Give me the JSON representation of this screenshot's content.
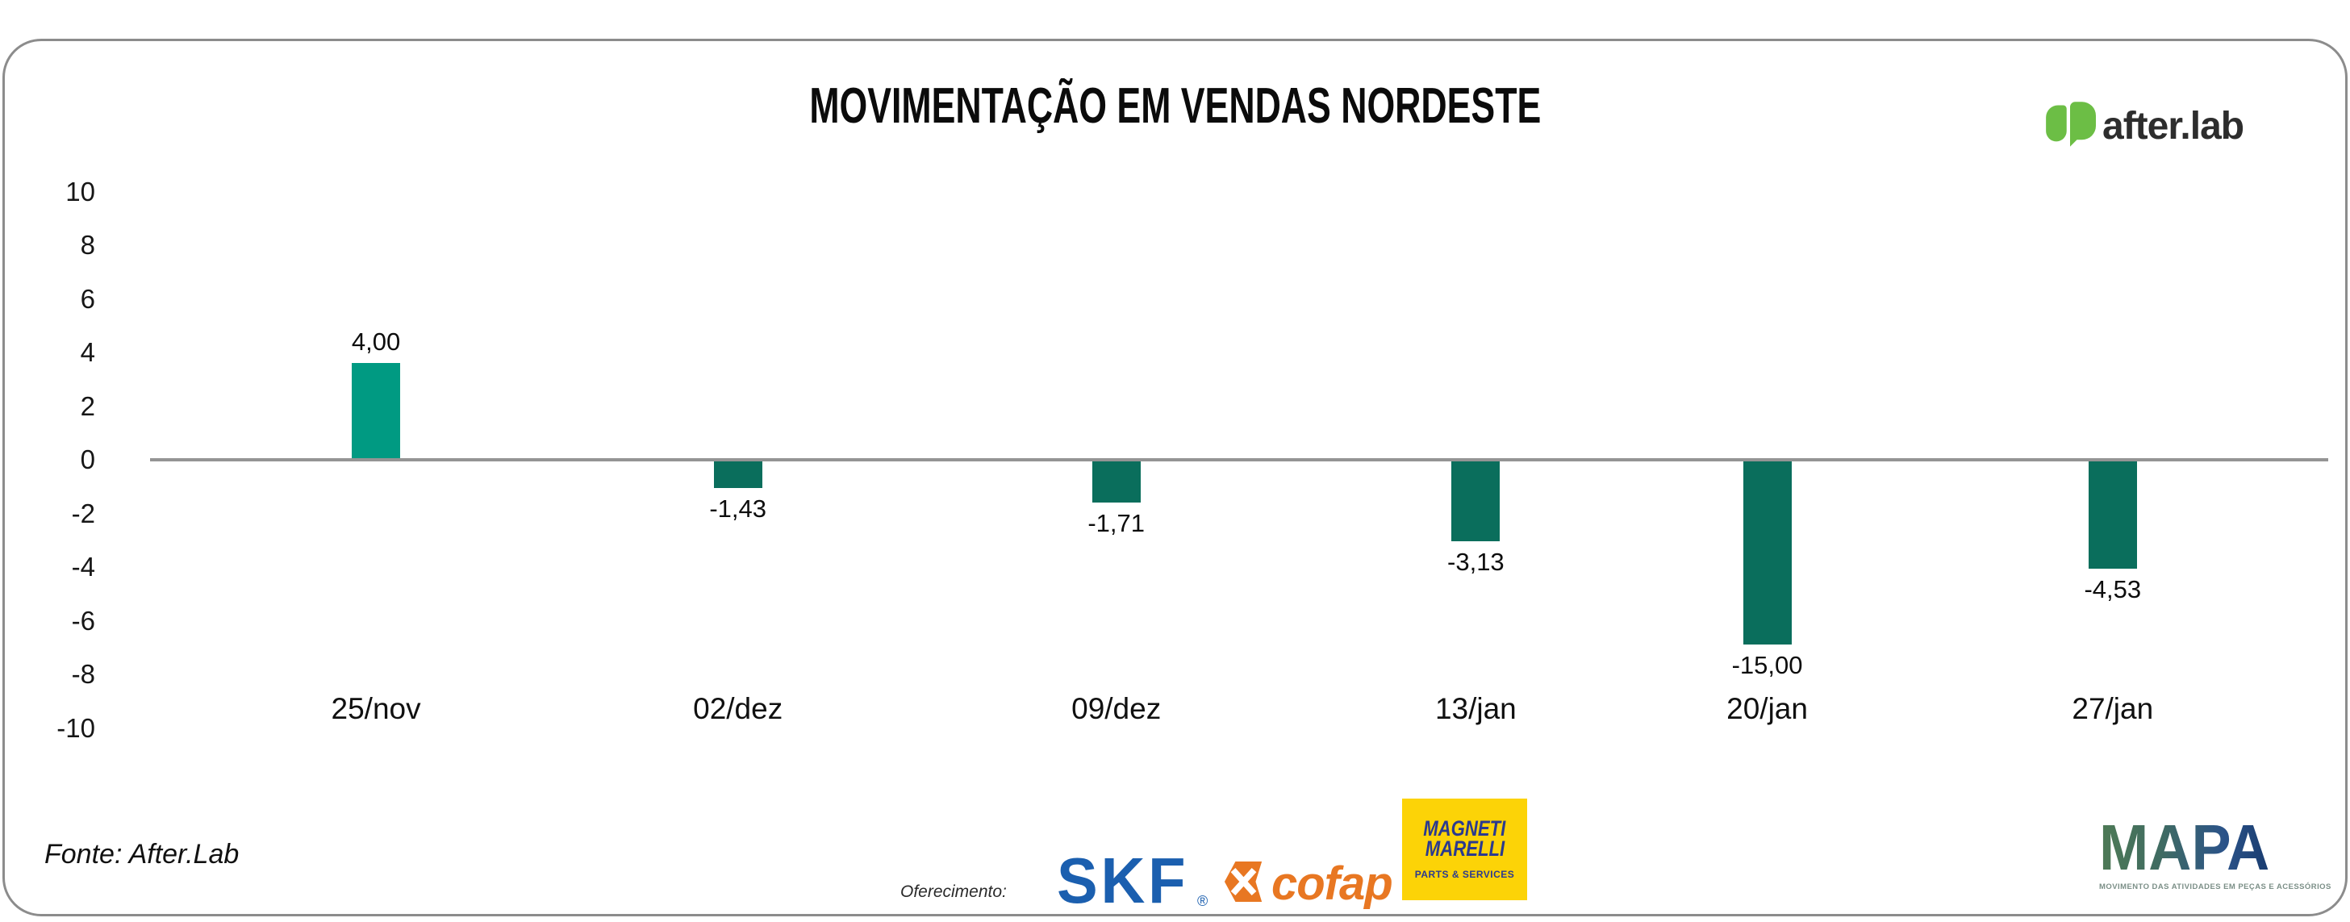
{
  "header": {
    "title": "MOVIMENTAÇÃO EM VENDAS NORDESTE",
    "brand": {
      "name": "after.lab",
      "icon": "after-lab-leaf-logo",
      "green": "#6CBE45",
      "text_color": "#2D2D2D"
    }
  },
  "chart_data": {
    "type": "bar",
    "title": "MOVIMENTAÇÃO EM VENDAS NORDESTE",
    "categories": [
      "25/nov",
      "02/dez",
      "09/dez",
      "13/jan",
      "20/jan",
      "27/jan"
    ],
    "values": [
      4.0,
      -1.43,
      -1.71,
      -3.13,
      -15.0,
      -4.53
    ],
    "value_labels": [
      "4,00",
      "-1,43",
      "-1,71",
      "-3,13",
      "-15,00",
      "-4,53"
    ],
    "bar_display_values": [
      3.6,
      -1.05,
      -1.6,
      -3.05,
      -6.9,
      -4.05
    ],
    "x_positions_pct": [
      16.0,
      31.4,
      47.5,
      62.8,
      75.2,
      89.9
    ],
    "yticks": [
      10,
      8,
      6,
      4,
      2,
      0,
      -2,
      -4,
      -6,
      -8,
      -10
    ],
    "ylim": [
      -10,
      10
    ],
    "grid": false,
    "legend": null,
    "xlabel": "",
    "ylabel": "",
    "colors": {
      "positive_bar": "#009A82",
      "negative_bar": "#0A6E5C",
      "axis_line": "#949494"
    }
  },
  "footer": {
    "source": "Fonte: After.Lab",
    "sponsor_label": "Oferecimento:",
    "sponsors": [
      {
        "name": "SKF",
        "text": "SKF",
        "reg_mark": "®",
        "color": "#1B5FAF"
      },
      {
        "name": "Cofap",
        "text": "cofap",
        "color": "#E87722",
        "icon": "cofap-x-icon"
      },
      {
        "name": "Magneti Marelli",
        "line1": "MAGNETI",
        "line2": "MARELLI",
        "subtitle": "PARTS & SERVICES",
        "bg": "#FCD307",
        "fg": "#2B3A8F"
      },
      {
        "name": "MAPA",
        "text": "MAPA",
        "tagline": "MOVIMENTO DAS ATIVIDADES EM PEÇAS E ACESSÓRIOS"
      }
    ]
  }
}
